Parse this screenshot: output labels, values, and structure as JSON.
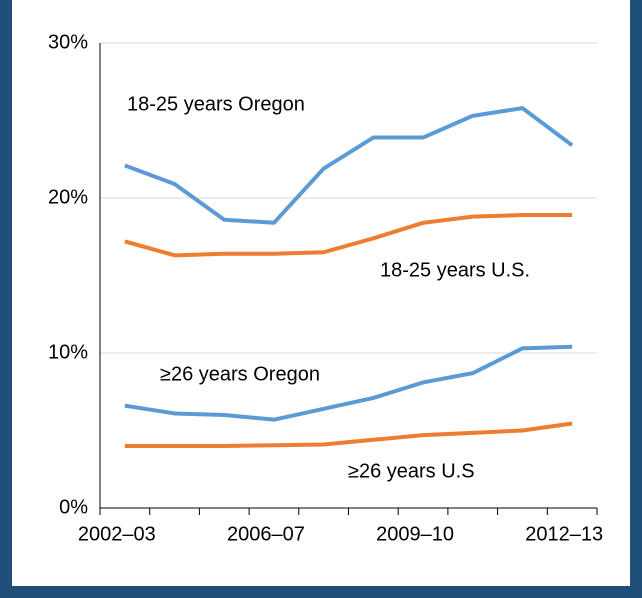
{
  "chart_data": {
    "type": "line",
    "categories": [
      "2002–03",
      null,
      null,
      "2006–07",
      null,
      null,
      "2009–10",
      null,
      null,
      "2012–13"
    ],
    "series": [
      {
        "name": "18-25 years Oregon",
        "color": "#5b9bd5",
        "values": [
          22.1,
          20.9,
          18.6,
          18.4,
          21.9,
          23.9,
          23.9,
          25.3,
          25.8,
          23.4
        ]
      },
      {
        "name": "18-25 years U.S.",
        "color": "#ed7d31",
        "values": [
          17.2,
          16.3,
          16.4,
          16.4,
          16.5,
          17.4,
          18.4,
          18.8,
          18.9,
          18.9
        ]
      },
      {
        "name": "≥26 years Oregon",
        "color": "#5b9bd5",
        "values": [
          6.6,
          6.1,
          6.0,
          5.7,
          6.4,
          7.1,
          8.1,
          8.7,
          10.3,
          10.4
        ]
      },
      {
        "name": "≥26 years U.S",
        "color": "#ed7d31",
        "values": [
          4.0,
          4.0,
          4.0,
          4.05,
          4.1,
          4.4,
          4.7,
          4.85,
          5.0,
          5.45
        ]
      }
    ],
    "ylim": [
      0,
      30
    ],
    "yticks": [
      {
        "value": 0,
        "label": "0%"
      },
      {
        "value": 10,
        "label": "10%"
      },
      {
        "value": 20,
        "label": "20%"
      },
      {
        "value": 30,
        "label": "30%"
      }
    ],
    "grid": true
  }
}
